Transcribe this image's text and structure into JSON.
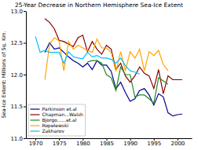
{
  "chart_data": {
    "type": "line",
    "title": "25-Year Decrease in Northern Hemisphere Sea-Ice Extent",
    "ylabel": "Sea-Ice Extent: Millions of Sq. Km.",
    "x": [
      1970,
      1971,
      1972,
      1973,
      1974,
      1975,
      1976,
      1977,
      1978,
      1979,
      1980,
      1981,
      1982,
      1983,
      1984,
      1985,
      1986,
      1987,
      1988,
      1989,
      1990,
      1991,
      1992,
      1993,
      1994,
      1995,
      1996,
      1997,
      1998,
      1999,
      2000,
      2001
    ],
    "series": [
      {
        "name": "Parkinson et.al",
        "color": "#00008B",
        "values": [
          null,
          null,
          12.35,
          12.5,
          12.4,
          12.42,
          12.35,
          12.28,
          12.22,
          12.18,
          12.12,
          12.18,
          12.08,
          12.22,
          12.15,
          12.15,
          12.05,
          11.78,
          11.88,
          11.72,
          11.58,
          11.62,
          11.75,
          11.78,
          11.68,
          11.52,
          11.7,
          11.65,
          11.4,
          11.35,
          11.37,
          11.38
        ]
      },
      {
        "name": "Chapman...Walsh",
        "color": "#8B0000",
        "values": [
          null,
          null,
          12.88,
          12.82,
          12.72,
          12.54,
          12.52,
          12.48,
          12.44,
          12.58,
          12.62,
          12.36,
          12.52,
          12.4,
          12.32,
          12.46,
          12.4,
          12.08,
          12.18,
          11.98,
          11.88,
          11.98,
          12.12,
          12.02,
          11.98,
          11.78,
          12.08,
          11.7,
          11.98,
          11.92,
          11.92,
          11.92
        ]
      },
      {
        "name": "Bjorgo......et.al",
        "color": "#228B22",
        "values": [
          null,
          null,
          null,
          null,
          null,
          null,
          null,
          null,
          null,
          null,
          null,
          12.2,
          12.22,
          12.22,
          12.18,
          12.0,
          11.95,
          11.75,
          12.12,
          12.0,
          12.0,
          11.65,
          11.68,
          11.68,
          11.62,
          11.55,
          11.95,
          11.9,
          11.85,
          null,
          null,
          null
        ]
      },
      {
        "name": "Ropelewski",
        "color": "#FFA500",
        "values": [
          null,
          null,
          11.92,
          12.48,
          12.58,
          12.53,
          12.06,
          12.52,
          12.4,
          12.46,
          12.42,
          12.38,
          12.35,
          12.56,
          12.42,
          12.42,
          12.35,
          12.05,
          12.36,
          12.06,
          12.36,
          12.26,
          12.4,
          12.06,
          12.36,
          12.3,
          12.38,
          12.16,
          12.06,
          null,
          null,
          null
        ]
      },
      {
        "name": "Zakharov",
        "color": "#00BFFF",
        "values": [
          12.6,
          12.35,
          12.38,
          12.35,
          12.35,
          12.35,
          12.18,
          12.36,
          12.28,
          12.26,
          12.25,
          12.35,
          12.28,
          12.3,
          12.26,
          12.26,
          12.24,
          12.18,
          12.26,
          12.14,
          12.06,
          12.04,
          12.01,
          null,
          null,
          null,
          null,
          null,
          null,
          null,
          null,
          null
        ]
      }
    ],
    "xlim": [
      1968,
      2003
    ],
    "xticks": [
      1970,
      1975,
      1980,
      1985,
      1990,
      1995,
      2000
    ],
    "ylim": [
      11.0,
      13.0
    ],
    "yticks": [
      {
        "value": 11.0,
        "label": "11.0"
      },
      11.5,
      {
        "value": 12.0,
        "label": "12.0"
      },
      12.5,
      {
        "value": 13.0,
        "label": "13.0"
      }
    ],
    "grid": false,
    "legend": "lower left"
  }
}
